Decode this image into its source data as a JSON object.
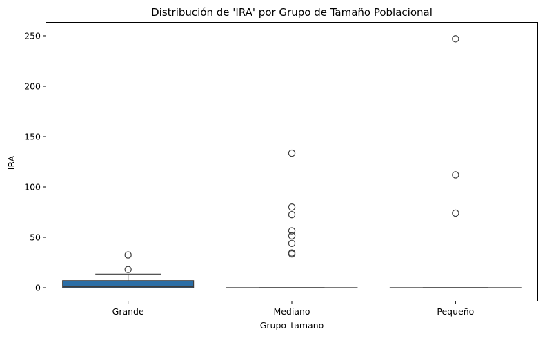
{
  "chart_data": {
    "type": "box",
    "title": "Distribución de 'IRA' por Grupo de Tamaño Poblacional",
    "xlabel": "Grupo_tamano",
    "ylabel": "IRA",
    "ylim": [
      -13,
      263
    ],
    "yticks": [
      0,
      50,
      100,
      150,
      200,
      250
    ],
    "ytick_labels": [
      "0",
      "50",
      "100",
      "150",
      "200",
      "250"
    ],
    "grid": false,
    "legend": "none",
    "categories": [
      "Grande",
      "Mediano",
      "Pequeño"
    ],
    "boxes": [
      {
        "category": "Grande",
        "whisker_low": 0,
        "q1": 0,
        "median": 1,
        "q3": 7,
        "whisker_high": 13.5,
        "outliers": [
          18,
          32.5
        ],
        "fill": "#2b6ea6"
      },
      {
        "category": "Mediano",
        "whisker_low": 0,
        "q1": 0,
        "median": 0,
        "q3": 0,
        "whisker_high": 0,
        "outliers": [
          133.5,
          80,
          72.5,
          56.5,
          51.5,
          44,
          34.5,
          33.5
        ],
        "fill": "#2b6ea6"
      },
      {
        "category": "Pequeño",
        "whisker_low": 0,
        "q1": 0,
        "median": 0,
        "q3": 0,
        "whisker_high": 0,
        "outliers": [
          247,
          112,
          74
        ],
        "fill": "#2b6ea6"
      }
    ],
    "colors": {
      "box_edge": "#3d3d3d",
      "axis": "#000000",
      "outlier_edge": "#3d3d3d"
    }
  }
}
